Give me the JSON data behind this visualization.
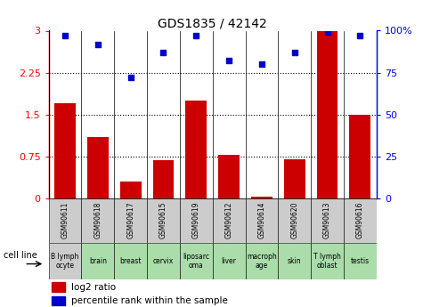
{
  "title": "GDS1835 / 42142",
  "samples": [
    "GSM90611",
    "GSM90618",
    "GSM90617",
    "GSM90615",
    "GSM90619",
    "GSM90612",
    "GSM90614",
    "GSM90620",
    "GSM90613",
    "GSM90616"
  ],
  "cell_lines": [
    "B lymph\nocyte",
    "brain",
    "breast",
    "cervix",
    "liposarc\noma",
    "liver",
    "macroph\nage",
    "skin",
    "T lymph\noblast",
    "testis"
  ],
  "log2_ratio": [
    1.7,
    1.1,
    0.3,
    0.68,
    1.75,
    0.78,
    0.02,
    0.7,
    3.0,
    1.5
  ],
  "percentile_rank": [
    97,
    92,
    72,
    87,
    97,
    82,
    80,
    87,
    99,
    97
  ],
  "bar_color": "#cc0000",
  "dot_color": "#0000cc",
  "ylim_left": [
    0,
    3
  ],
  "ylim_right": [
    0,
    100
  ],
  "yticks_left": [
    0,
    0.75,
    1.5,
    2.25,
    3
  ],
  "yticks_right": [
    0,
    25,
    50,
    75,
    100
  ],
  "ytick_labels_left": [
    "0",
    "0.75",
    "1.5",
    "2.25",
    "3"
  ],
  "ytick_labels_right": [
    "0",
    "25",
    "50",
    "75",
    "100%"
  ],
  "hlines": [
    0.75,
    1.5,
    2.25
  ],
  "cell_line_bg_gray": "#cccccc",
  "cell_line_bg_green": "#aaddaa",
  "cell_line_green_indices": [
    1,
    2,
    3,
    4,
    5,
    6,
    7,
    8,
    9
  ],
  "sample_bg_gray": "#cccccc",
  "xlabel_label": "cell line"
}
